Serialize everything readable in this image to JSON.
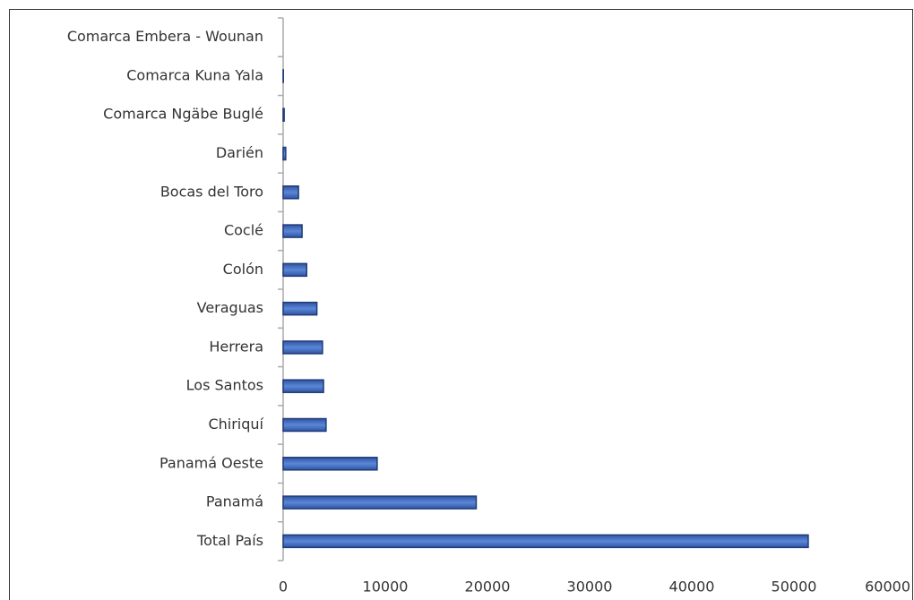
{
  "chart_data": {
    "type": "hbar",
    "categories": [
      "Comarca Embera - Wounan",
      "Comarca Kuna Yala",
      "Comarca Ngäbe Buglé",
      "Darién",
      "Bocas del Toro",
      "Coclé",
      "Colón",
      "Veraguas",
      "Herrera",
      "Los Santos",
      "Chiriquí",
      "Panamá Oeste",
      "Panamá",
      "Total País"
    ],
    "values": [
      0,
      20,
      100,
      250,
      1500,
      1850,
      2300,
      3300,
      3850,
      3950,
      4200,
      9200,
      18900,
      51400
    ],
    "color": "#4472c4",
    "xlim": [
      0,
      60000
    ],
    "xticks": [
      0,
      10000,
      20000,
      30000,
      40000,
      50000,
      60000
    ],
    "grid": false
  }
}
